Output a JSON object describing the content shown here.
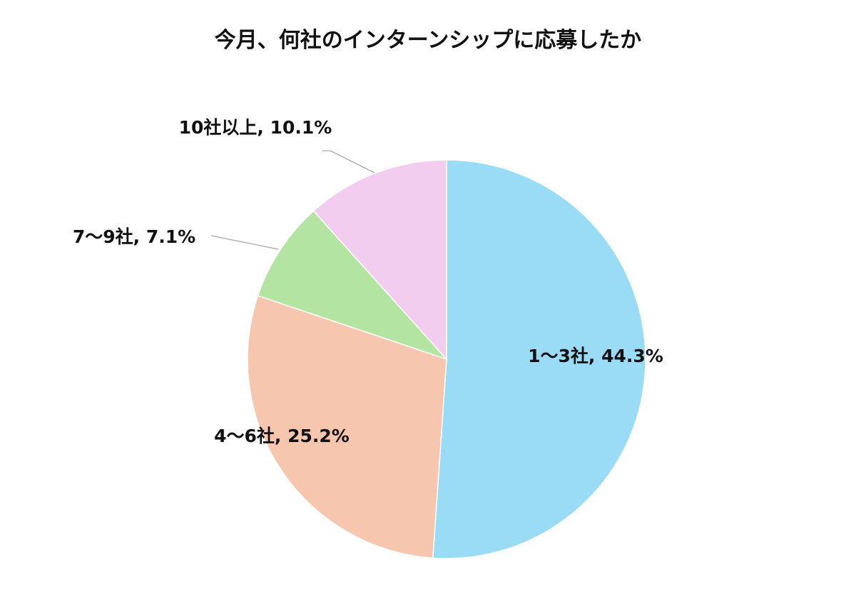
{
  "chart_data": {
    "type": "pie",
    "title": "今月、何社のインターンシップに応募したか",
    "slices": [
      {
        "label": "1〜3社",
        "value": 44.3,
        "value_label": "44.3%",
        "color": "#9adcf6"
      },
      {
        "label": "4〜6社",
        "value": 25.2,
        "value_label": "25.2%",
        "color": "#f6c6ae"
      },
      {
        "label": "7〜9社",
        "value": 7.1,
        "value_label": "7.1%",
        "color": "#b3e4a1"
      },
      {
        "label": "10社以上",
        "value": 10.1,
        "value_label": "10.1%",
        "color": "#f2cdef"
      }
    ],
    "start": "12 o'clock",
    "direction": "clockwise",
    "legend": "none",
    "data_labels": "category, percent"
  }
}
